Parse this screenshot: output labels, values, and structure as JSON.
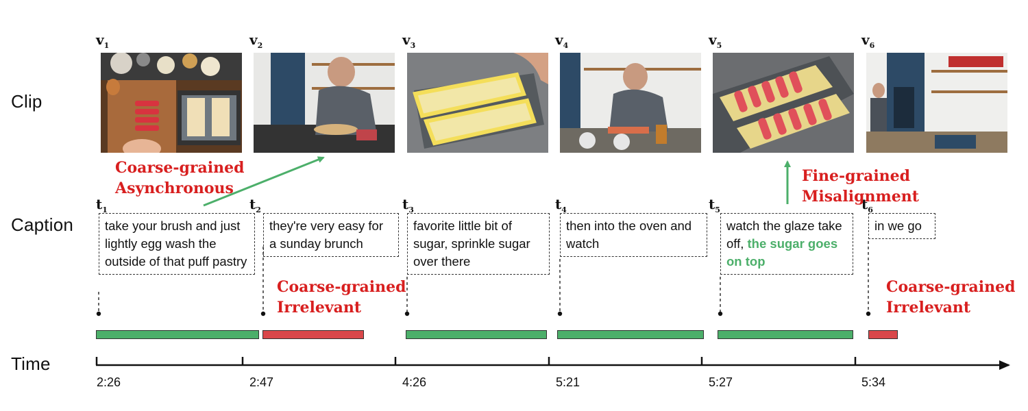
{
  "rows": {
    "clip": "Clip",
    "caption": "Caption",
    "time": "Time"
  },
  "clips": [
    {
      "letter": "v",
      "index": "1"
    },
    {
      "letter": "v",
      "index": "2"
    },
    {
      "letter": "v",
      "index": "3"
    },
    {
      "letter": "v",
      "index": "4"
    },
    {
      "letter": "v",
      "index": "5"
    },
    {
      "letter": "v",
      "index": "6"
    }
  ],
  "captions": [
    {
      "letter": "t",
      "index": "1",
      "text": "take your brush and just lightly egg wash the outside of that puff pastry"
    },
    {
      "letter": "t",
      "index": "2",
      "text": "they're very easy for a sunday brunch"
    },
    {
      "letter": "t",
      "index": "3",
      "text": "favorite little bit of sugar, sprinkle sugar over there"
    },
    {
      "letter": "t",
      "index": "4",
      "text": "then into the oven and watch"
    },
    {
      "letter": "t",
      "index": "5",
      "text": "watch the glaze take off,",
      "highlight": "the sugar goes on top"
    },
    {
      "letter": "t",
      "index": "6",
      "text": "in we go"
    }
  ],
  "annotations": {
    "coarse_async": [
      "Coarse-grained",
      "Asynchronous"
    ],
    "coarse_irrelevant_1": [
      "Coarse-grained",
      "Irrelevant"
    ],
    "fine_misalignment": "Fine-grained Misalignment",
    "coarse_irrelevant_2": [
      "Coarse-grained",
      "Irrelevant"
    ]
  },
  "timeline": {
    "ticks": [
      "2:26",
      "2:47",
      "4:26",
      "5:21",
      "5:27",
      "5:34"
    ]
  },
  "colors": {
    "aligned": "#4caf6a",
    "misaligned": "#d9474a",
    "annotation": "#d81f1f",
    "arrow": "#4caf6a"
  }
}
